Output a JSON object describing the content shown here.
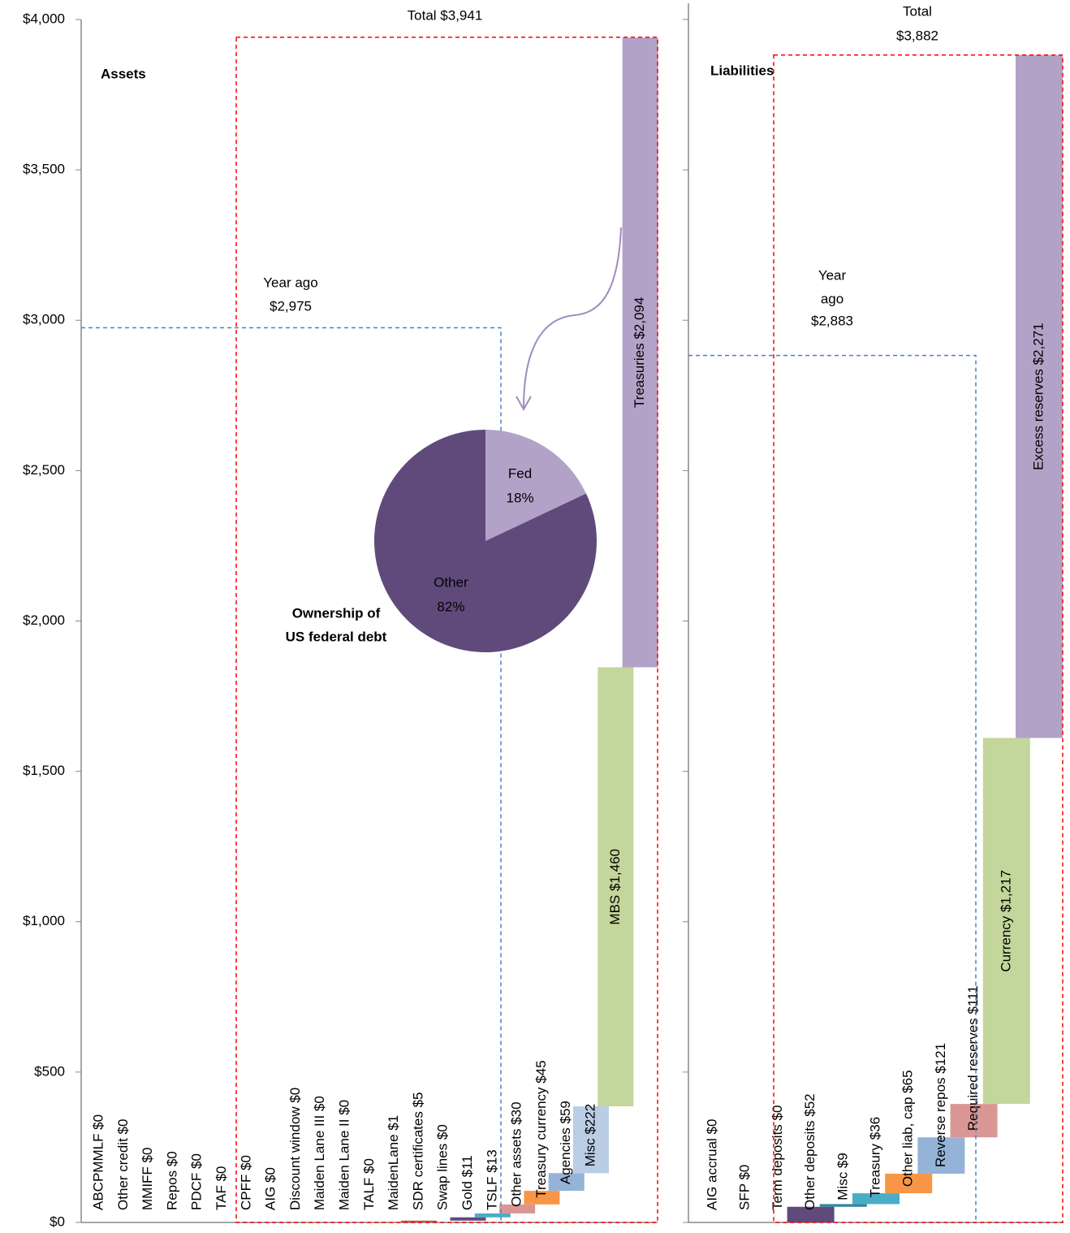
{
  "chart_data": [
    {
      "type": "waterfall",
      "ylim": [
        0,
        4000
      ],
      "yticks": [
        {
          "value": 0,
          "label": "$0"
        },
        {
          "value": 500,
          "label": "$500"
        },
        {
          "value": 1000,
          "label": "$1,000"
        },
        {
          "value": 1500,
          "label": "$1,500"
        },
        {
          "value": 2000,
          "label": "$2,000"
        },
        {
          "value": 2500,
          "label": "$2,500"
        },
        {
          "value": 3000,
          "label": "$3,000"
        },
        {
          "value": 3500,
          "label": "$3,500"
        },
        {
          "value": 4000,
          "label": "$4,000"
        }
      ],
      "panels": [
        {
          "title": "Assets",
          "values": [
            0,
            0,
            0,
            0,
            0,
            0,
            0,
            0,
            0,
            0,
            0,
            0,
            1,
            5,
            0,
            11,
            13,
            30,
            45,
            59,
            222,
            1460,
            2094
          ],
          "value_labels": [
            "ABCPMMLF $0",
            "Other credit $0",
            "MMIFF  $0",
            "Repos $0",
            "PDCF $0",
            "TAF $0",
            "CPFF $0",
            "AIG $0",
            "Discount window $0",
            "Maiden Lane III $0",
            "Maiden Lane II $0",
            "TALF $0",
            "MaidenLane $1",
            "SDR certificates $5",
            "Swap lines $0",
            "Gold $11",
            "TSLF $13",
            "Other assets $30",
            "Treasury currency $45",
            "Agencies $59",
            "Misc $222",
            "MBS $1,460",
            "Treasuries $2,094"
          ],
          "colors": [
            null,
            null,
            null,
            null,
            null,
            null,
            null,
            null,
            null,
            null,
            null,
            null,
            "#c0504d",
            "#c0504d",
            null,
            "#604a7b",
            "#4bacc6",
            "#da9694",
            "#f79646",
            "#95b3d7",
            "#b9cde5",
            "#c3d69b",
            "#b3a2c7"
          ],
          "total": 3941,
          "total_label": [
            "Total $3,941"
          ],
          "year_ago": 2975,
          "year_ago_label": [
            "Year ago",
            "$2,975"
          ]
        },
        {
          "title": "Liabilities",
          "values": [
            0,
            0,
            0,
            52,
            9,
            36,
            65,
            121,
            111,
            1217,
            2271
          ],
          "value_labels": [
            "AIG accrual $0",
            "SFP $0",
            "Term deposits $0",
            "Other deposits $52",
            "Misc $9",
            "Treasury $36",
            "Other liab, cap $65",
            "Reverse repos $121",
            "Required reserves $111",
            "Currency $1,217",
            "Excess reserves $2,271"
          ],
          "colors": [
            null,
            null,
            null,
            "#604a7b",
            "#31859c",
            "#4bacc6",
            "#f79646",
            "#95b3d7",
            "#da9694",
            "#c3d69b",
            "#b3a2c7"
          ],
          "total": 3882,
          "total_label": [
            "Total",
            "$3,882"
          ],
          "year_ago": 2883,
          "year_ago_label": [
            "Year",
            "ago",
            "$2,883"
          ]
        }
      ]
    },
    {
      "type": "pie",
      "title": [
        "Ownership of",
        "US federal debt"
      ],
      "categories": [
        "Fed",
        "Other"
      ],
      "values": [
        18,
        82
      ],
      "value_labels": [
        "18%",
        "82%"
      ],
      "colors": [
        "#b3a2c7",
        "#604a7b"
      ]
    }
  ]
}
